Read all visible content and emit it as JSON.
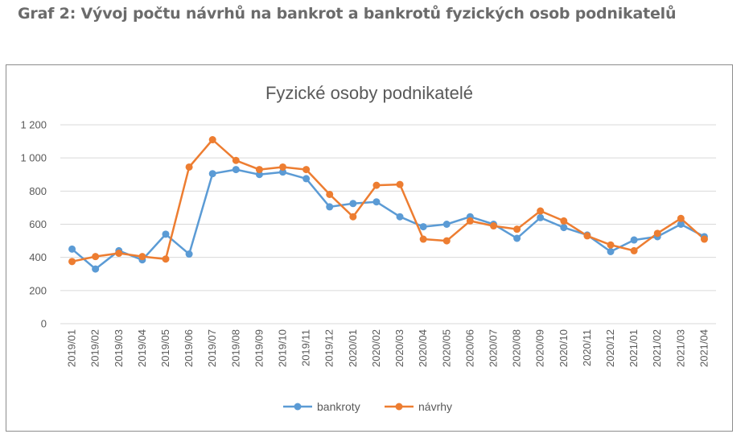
{
  "page": {
    "heading": "Graf 2: Vývoj počtu návrhů na bankrot a bankrotů fyzických osob podnikatelů"
  },
  "colors": {
    "bankroty": "#5b9bd5",
    "navrhy": "#ed7d31",
    "grid": "#d9d9d9",
    "text": "#595959",
    "heading": "#6b6b6b"
  },
  "chart_data": {
    "type": "line",
    "title": "Fyzické osoby podnikatelé",
    "xlabel": "",
    "ylabel": "",
    "ylim": [
      0,
      1200
    ],
    "y_ticks": [
      0,
      200,
      400,
      600,
      800,
      1000,
      1200
    ],
    "y_tick_labels": [
      "0",
      "200",
      "400",
      "600",
      "800",
      "1 000",
      "1 200"
    ],
    "grid": true,
    "legend_position": "bottom",
    "categories": [
      "2019/01",
      "2019/02",
      "2019/03",
      "2019/04",
      "2019/05",
      "2019/06",
      "2019/07",
      "2019/08",
      "2019/09",
      "2019/10",
      "2019/11",
      "2019/12",
      "2020/01",
      "2020/02",
      "2020/03",
      "2020/04",
      "2020/05",
      "2020/06",
      "2020/07",
      "2020/08",
      "2020/09",
      "2020/10",
      "2020/11",
      "2020/12",
      "2021/01",
      "2021/02",
      "2021/03",
      "2021/04"
    ],
    "series": [
      {
        "name": "bankroty",
        "color": "#5b9bd5",
        "values": [
          450,
          330,
          440,
          385,
          540,
          420,
          905,
          930,
          900,
          915,
          875,
          705,
          725,
          735,
          645,
          585,
          600,
          645,
          600,
          515,
          640,
          580,
          535,
          435,
          505,
          525,
          600,
          525
        ]
      },
      {
        "name": "návrhy",
        "color": "#ed7d31",
        "values": [
          375,
          405,
          425,
          405,
          390,
          945,
          1110,
          985,
          930,
          945,
          930,
          780,
          645,
          835,
          840,
          510,
          500,
          620,
          590,
          570,
          680,
          620,
          530,
          475,
          440,
          545,
          635,
          510
        ]
      }
    ]
  }
}
